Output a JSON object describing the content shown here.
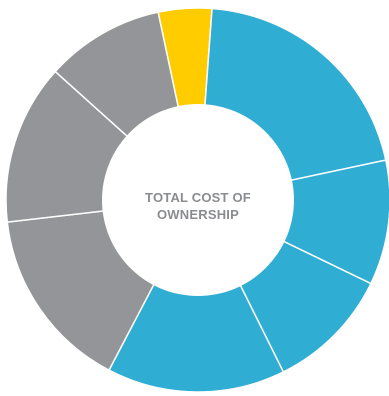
{
  "chart_data": {
    "type": "pie",
    "donut": true,
    "center_label": {
      "line1": "TOTAL COST OF",
      "line2": "OWNERSHIP"
    },
    "slices": [
      {
        "value": 4.5,
        "color": "#ffcc00"
      },
      {
        "value": 20.5,
        "color": "#2fadd3"
      },
      {
        "value": 10.5,
        "color": "#2fadd3"
      },
      {
        "value": 10.5,
        "color": "#2fadd3"
      },
      {
        "value": 15.0,
        "color": "#2fadd3"
      },
      {
        "value": 15.5,
        "color": "#939598"
      },
      {
        "value": 13.5,
        "color": "#939598"
      },
      {
        "value": 10.0,
        "color": "#939598"
      }
    ],
    "stroke_color": "#ffffff"
  }
}
